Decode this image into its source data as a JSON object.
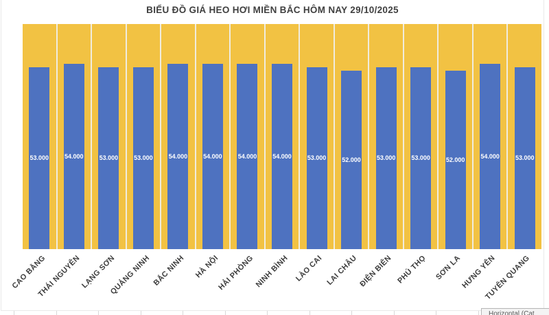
{
  "title": "BIỂU ĐỒ GIÁ HEO HƠI MIỀN BẮC HÔM NAY 29/10/2025",
  "chart_data": {
    "type": "bar",
    "title": "BIỂU ĐỒ GIÁ HEO HƠI MIỀN BẮC HÔM NAY 29/10/2025",
    "categories": [
      "CAO BẰNG",
      "THÁI NGUYÊN",
      "LẠNG SƠN",
      "QUẢNG NINH",
      "BẮC NINH",
      "HÀ NỘI",
      "HẢI PHÒNG",
      "NINH BÌNH",
      "LÀO CAI",
      "LAI CHÂU",
      "ĐIỆN BIÊN",
      "PHÚ THỌ",
      "SƠN LA",
      "HƯNG YÊN",
      "TUYÊN QUANG"
    ],
    "values": [
      53000,
      54000,
      53000,
      53000,
      54000,
      54000,
      54000,
      54000,
      53000,
      52000,
      53000,
      53000,
      52000,
      54000,
      53000
    ],
    "value_labels": [
      "53.000",
      "54.000",
      "53.000",
      "53.000",
      "54.000",
      "54.000",
      "54.000",
      "54.000",
      "53.000",
      "52.000",
      "53.000",
      "53.000",
      "52.000",
      "54.000",
      "53.000"
    ],
    "xlabel": "",
    "ylabel": "",
    "ylim": [
      0,
      65500
    ],
    "grid": false,
    "legend": "none",
    "colors": {
      "bar": "#4E72C0",
      "column_background": "#F2C243",
      "column_gridline": "#F0ECDF",
      "data_label": "#FFFFFF",
      "axis_label": "#3D3D3D",
      "title": "#404040"
    }
  },
  "tooltip": {
    "text": "Horizontal (Cat"
  }
}
